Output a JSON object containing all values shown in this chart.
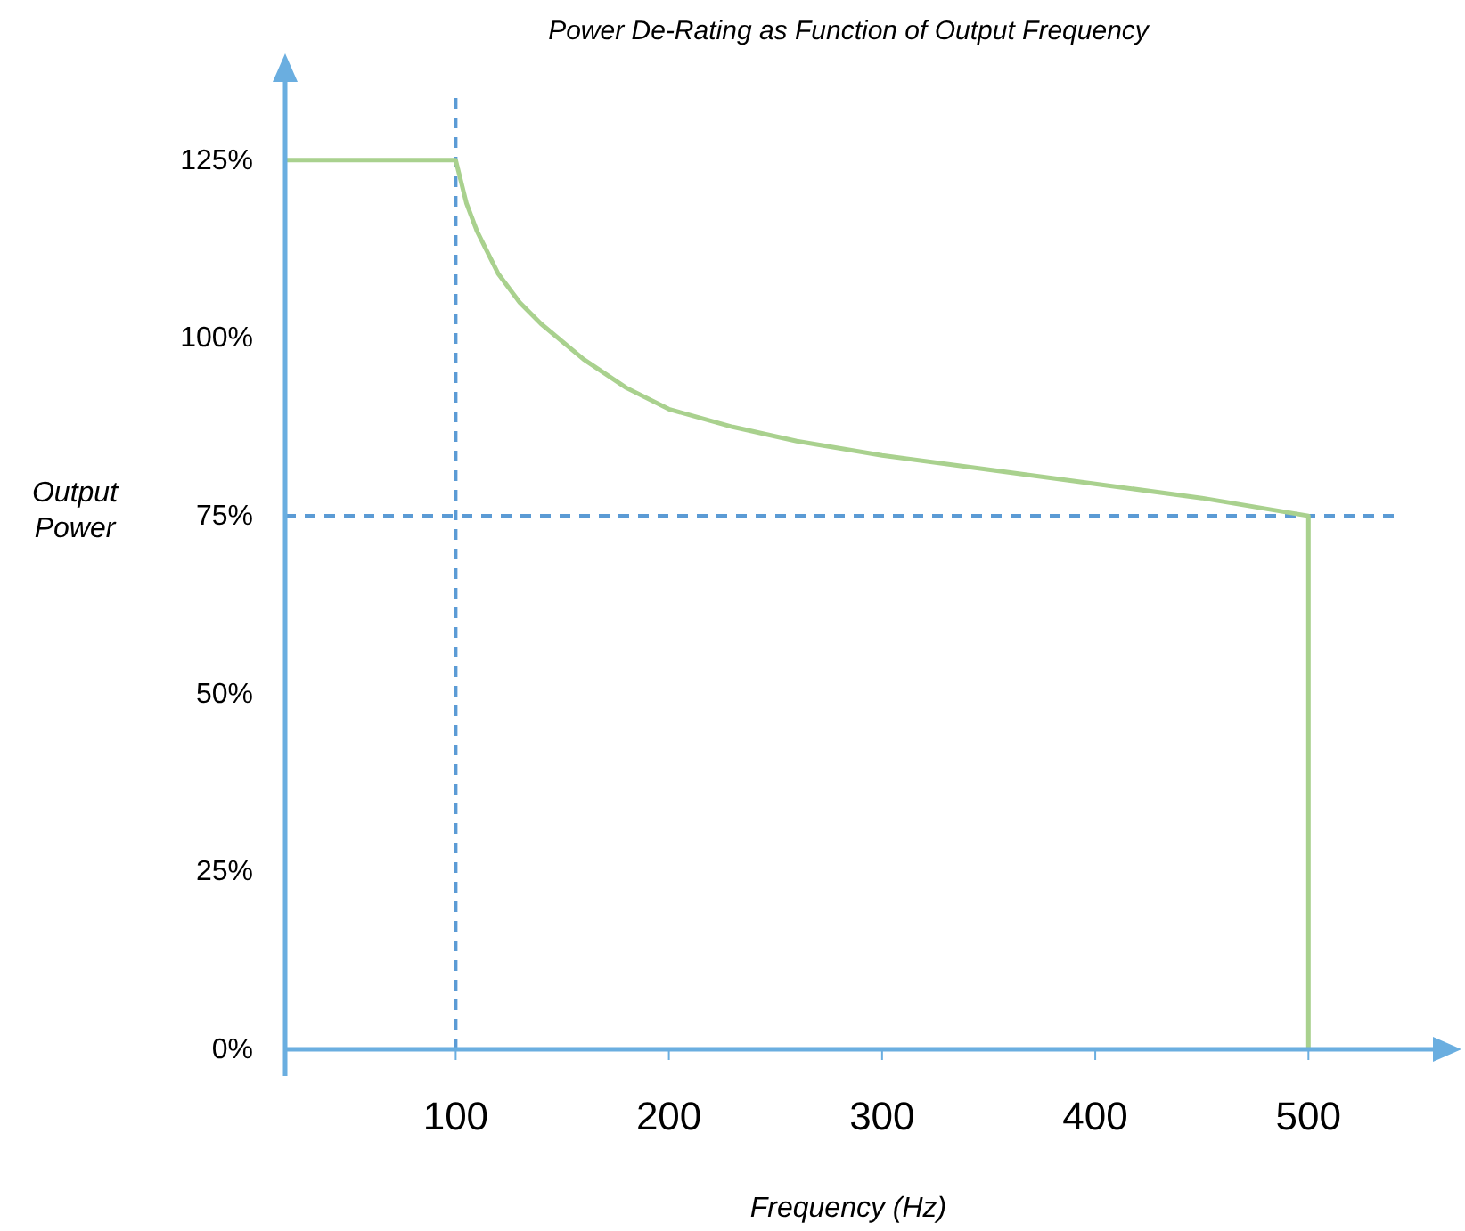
{
  "chart_data": {
    "type": "line",
    "title": "Power De-Rating as Function of Output Frequency",
    "xlabel": "Frequency (Hz)",
    "ylabel": "Output\nPower",
    "xlim": [
      20,
      540
    ],
    "xticks": [
      100,
      200,
      300,
      400,
      500
    ],
    "ylim": [
      0,
      135
    ],
    "yticks": [
      {
        "value": 0,
        "label": "0%"
      },
      {
        "value": 25,
        "label": "25%"
      },
      {
        "value": 50,
        "label": "50%"
      },
      {
        "value": 75,
        "label": "75%"
      },
      {
        "value": 100,
        "label": "100%"
      },
      {
        "value": 125,
        "label": "125%"
      }
    ],
    "grid": false,
    "marker": "none",
    "line_style": "solid",
    "series": [
      {
        "color": "#a9d18e",
        "x": [
          20,
          100,
          105,
          110,
          120,
          130,
          140,
          160,
          180,
          200,
          230,
          260,
          300,
          350,
          400,
          450,
          500,
          500
        ],
        "values": [
          125,
          125,
          119,
          115,
          109,
          105,
          102,
          97,
          93,
          90,
          87.5,
          85.5,
          83.5,
          81.5,
          79.5,
          77.5,
          75,
          0
        ]
      }
    ],
    "ref_lines": [
      {
        "axis": "x",
        "value": 100,
        "color": "#5b9bd5",
        "line_style": "dashed"
      },
      {
        "axis": "y",
        "value": 75,
        "color": "#5b9bd5",
        "line_style": "dashed"
      }
    ]
  }
}
